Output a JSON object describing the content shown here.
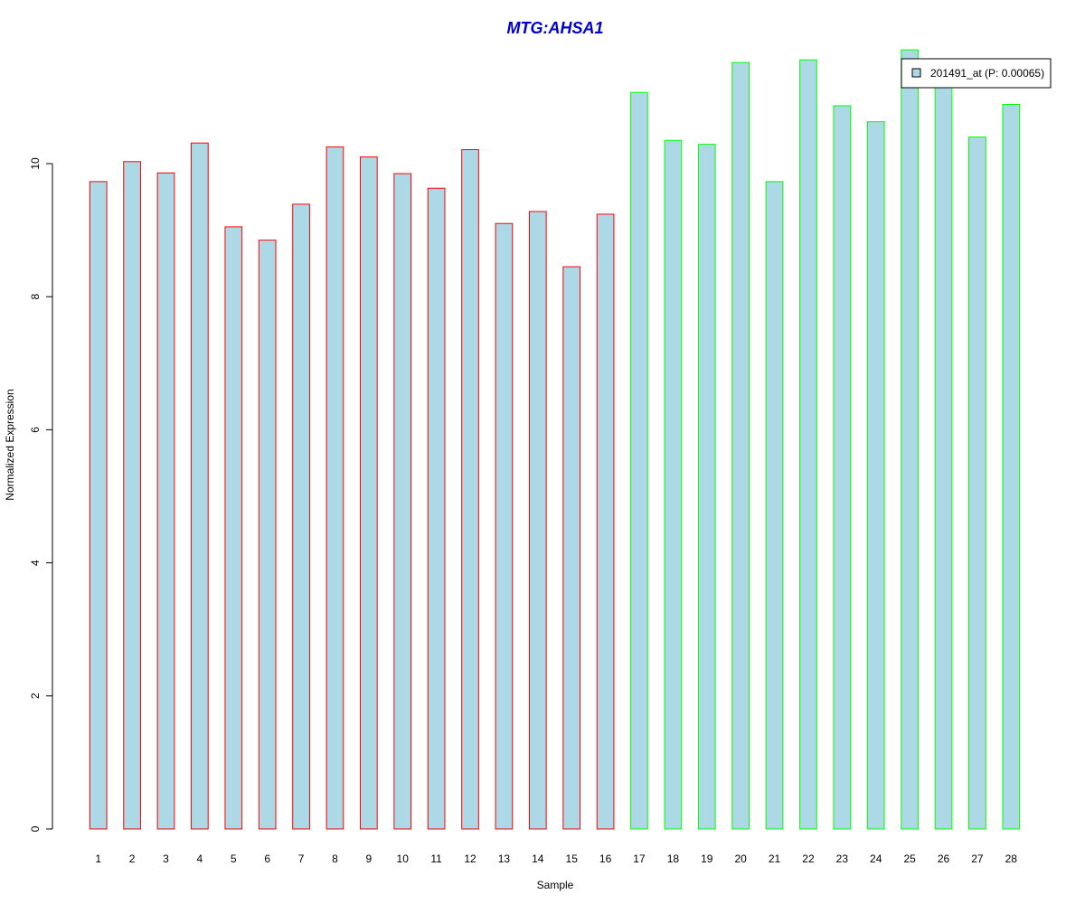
{
  "chart_data": {
    "type": "bar",
    "title": "MTG:AHSA1",
    "xlabel": "Sample",
    "ylabel": "Normalized Expression",
    "categories": [
      "1",
      "2",
      "3",
      "4",
      "5",
      "6",
      "7",
      "8",
      "9",
      "10",
      "11",
      "12",
      "13",
      "14",
      "15",
      "16",
      "17",
      "18",
      "19",
      "20",
      "21",
      "22",
      "23",
      "24",
      "25",
      "26",
      "27",
      "28"
    ],
    "series": [
      {
        "name": "201491_at (P: 0.00065)",
        "values": [
          9.73,
          10.03,
          9.86,
          10.31,
          9.05,
          8.85,
          9.39,
          10.25,
          10.1,
          9.85,
          9.63,
          10.21,
          9.1,
          9.28,
          8.45,
          9.24,
          11.07,
          10.35,
          10.29,
          11.52,
          9.73,
          11.56,
          10.87,
          10.63,
          11.71,
          11.16,
          10.4,
          10.89
        ],
        "group_border_colors": [
          "#ff0000",
          "#ff0000",
          "#ff0000",
          "#ff0000",
          "#ff0000",
          "#ff0000",
          "#ff0000",
          "#ff0000",
          "#ff0000",
          "#ff0000",
          "#ff0000",
          "#ff0000",
          "#ff0000",
          "#ff0000",
          "#ff0000",
          "#ff0000",
          "#00ff00",
          "#00ff00",
          "#00ff00",
          "#00ff00",
          "#00ff00",
          "#00ff00",
          "#00ff00",
          "#00ff00",
          "#00ff00",
          "#00ff00",
          "#00ff00",
          "#00ff00"
        ]
      }
    ],
    "ylim": [
      0,
      12
    ],
    "yticks": [
      "0",
      "2",
      "4",
      "6",
      "8",
      "10"
    ],
    "legend_placement": "top-right",
    "grid": false,
    "colors": {
      "bar_fill": "#add8e6",
      "title": "#0000cc",
      "axis": "#000000"
    }
  }
}
